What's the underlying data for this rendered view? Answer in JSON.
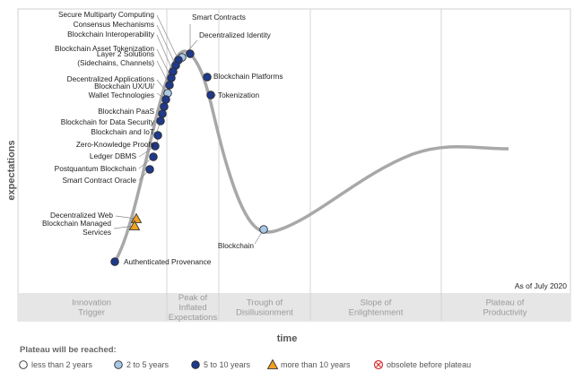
{
  "chart_data": {
    "type": "scatter",
    "title": "",
    "xlabel": "time",
    "ylabel": "expectations",
    "as_of": "As of July 2020",
    "phases": [
      [
        "Innovation",
        "Trigger"
      ],
      [
        "Peak of",
        "Inflated",
        "Expectations"
      ],
      [
        "Trough of",
        "Disillusionment"
      ],
      [
        "Slope of",
        "Enlightenment"
      ],
      [
        "Plateau of",
        "Productivity"
      ]
    ],
    "legend": {
      "title": "Plateau will be reached:",
      "items": [
        {
          "key": "lt2",
          "label": "less than 2 years"
        },
        {
          "key": "2to5",
          "label": "2 to 5 years"
        },
        {
          "key": "5to10",
          "label": "5 to 10 years"
        },
        {
          "key": "gt10",
          "label": "more than 10 years"
        },
        {
          "key": "obsolete",
          "label": "obsolete before plateau"
        }
      ]
    },
    "colors": {
      "lt2": "#ffffff",
      "2to5": "#a8c8e8",
      "5to10": "#1f3a8a",
      "gt10": "#f0a020",
      "obsolete": "#d03030",
      "curve": "#a8a8a8",
      "band": "#e6e6e6",
      "phase_text": "#9a9a9a"
    },
    "points": [
      {
        "label": "Smart Contracts",
        "cat": "5to10"
      },
      {
        "label": "Decentralized Identity",
        "cat": "2to5"
      },
      {
        "label": "Secure Multiparty Computing",
        "cat": "5to10"
      },
      {
        "label": "Consensus Mechanisms",
        "cat": "5to10"
      },
      {
        "label": "Blockchain Interoperability",
        "cat": "5to10"
      },
      {
        "label": "Blockchain Asset Tokenization",
        "cat": "5to10"
      },
      {
        "label": "Layer 2 Solutions (Sidechains, Channels)",
        "cat": "5to10"
      },
      {
        "label": "Decentralized Applications",
        "cat": "2to5"
      },
      {
        "label": "Blockchain UX/UI/ Wallet Technologies",
        "cat": "5to10"
      },
      {
        "label": "Blockchain PaaS",
        "cat": "5to10"
      },
      {
        "label": "Blockchain for Data Security",
        "cat": "5to10"
      },
      {
        "label": "Blockchain and IoT",
        "cat": "5to10"
      },
      {
        "label": "Zero-Knowledge Proofs",
        "cat": "5to10"
      },
      {
        "label": "Ledger DBMS",
        "cat": "5to10"
      },
      {
        "label": "Postquantum Blockchain",
        "cat": "5to10"
      },
      {
        "label": "Smart Contract Oracle",
        "cat": "5to10"
      },
      {
        "label": "Decentralized Web",
        "cat": "gt10"
      },
      {
        "label": "Blockchain Managed Services",
        "cat": "gt10"
      },
      {
        "label": "Authenticated Provenance",
        "cat": "5to10"
      },
      {
        "label": "Blockchain Platforms",
        "cat": "5to10"
      },
      {
        "label": "Tokenization",
        "cat": "5to10"
      },
      {
        "label": "Blockchain",
        "cat": "2to5"
      }
    ]
  }
}
